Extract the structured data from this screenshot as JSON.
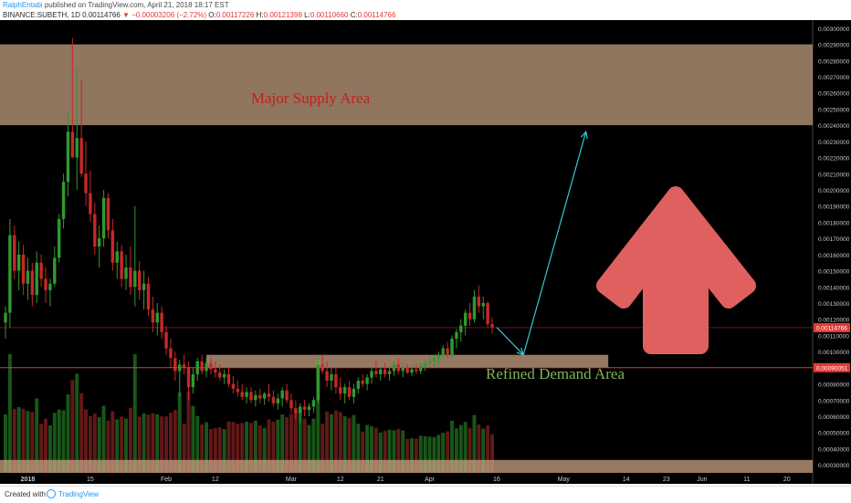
{
  "header": {
    "author": "RalphEntabi",
    "published_text": " published on TradingView.com, April 21, 2018 18:17 EST",
    "symbol": "BINANCE:SUBETH, 1D",
    "last": "0.00114766",
    "change": "−0.00003206 (−2.72%)",
    "open_label": "O:",
    "open": "0.00117226",
    "high_label": "H:",
    "high": "0.00121398",
    "low_label": "L:",
    "low": "0.00110660",
    "close_label": "C:",
    "close": "0.00114766"
  },
  "footer": {
    "created_with": "Created with",
    "brand": "TradingView"
  },
  "colors": {
    "background": "#000000",
    "bull": "#2e9a2e",
    "bear": "#c62828",
    "zone": "#c7a283",
    "price_line": "#e53935",
    "arrow_line": "#35c7d8",
    "big_arrow": "#e06060",
    "supply_text": "#c41e1e",
    "demand_text": "#7fb25c"
  },
  "chart_data": {
    "type": "candlestick",
    "y_axis": {
      "min": 0.00025,
      "max": 0.00305,
      "tick_labels": [
        "0.00300000",
        "0.00290000",
        "0.00280000",
        "0.00270000",
        "0.00260000",
        "0.00250000",
        "0.00240000",
        "0.00230000",
        "0.00220000",
        "0.00210000",
        "0.00200000",
        "0.00190000",
        "0.00180000",
        "0.00170000",
        "0.00160000",
        "0.00150000",
        "0.00140000",
        "0.00130000",
        "0.00120000",
        "0.00110000",
        "0.00100000",
        "0.00090000",
        "0.00080000",
        "0.00070000",
        "0.00060000",
        "0.00050000",
        "0.00040000",
        "0.00030000"
      ],
      "price_tag": {
        "label": "0.00114766",
        "value": 0.00114766
      },
      "level_tag": {
        "label": "0.00090051",
        "value": 0.00090051
      }
    },
    "x_axis": {
      "labels": [
        {
          "text": "2018",
          "index": 5,
          "bold": true
        },
        {
          "text": "15",
          "index": 19
        },
        {
          "text": "Feb",
          "index": 36
        },
        {
          "text": "12",
          "index": 47
        },
        {
          "text": "Mar",
          "index": 64
        },
        {
          "text": "12",
          "index": 75
        },
        {
          "text": "21",
          "index": 84
        },
        {
          "text": "Apr",
          "index": 95
        },
        {
          "text": "16",
          "index": 110
        },
        {
          "text": "May",
          "index": 125
        },
        {
          "text": "14",
          "index": 139
        },
        {
          "text": "23",
          "index": 148
        },
        {
          "text": "Jun",
          "index": 156
        },
        {
          "text": "11",
          "index": 166
        },
        {
          "text": "20",
          "index": 175
        }
      ],
      "bars_total": 182
    },
    "candles": [
      [
        0.00118,
        0.00128,
        0.00108,
        0.00124
      ],
      [
        0.00124,
        0.00182,
        0.00115,
        0.00172
      ],
      [
        0.00172,
        0.00178,
        0.00145,
        0.0015
      ],
      [
        0.0015,
        0.00168,
        0.00138,
        0.0016
      ],
      [
        0.0016,
        0.00166,
        0.00135,
        0.00142
      ],
      [
        0.00142,
        0.00158,
        0.00132,
        0.0015
      ],
      [
        0.0015,
        0.00155,
        0.00128,
        0.00135
      ],
      [
        0.00135,
        0.00162,
        0.0013,
        0.00155
      ],
      [
        0.00155,
        0.0016,
        0.0014,
        0.00145
      ],
      [
        0.00145,
        0.00152,
        0.0013,
        0.00138
      ],
      [
        0.00138,
        0.00145,
        0.00128,
        0.00142
      ],
      [
        0.00142,
        0.00165,
        0.0014,
        0.00158
      ],
      [
        0.00158,
        0.00185,
        0.00155,
        0.00182
      ],
      [
        0.00182,
        0.0021,
        0.00176,
        0.00205
      ],
      [
        0.00205,
        0.00248,
        0.00196,
        0.00236
      ],
      [
        0.00236,
        0.00294,
        0.0022,
        0.0022
      ],
      [
        0.0022,
        0.00275,
        0.002,
        0.00232
      ],
      [
        0.00232,
        0.00268,
        0.00208,
        0.0021
      ],
      [
        0.0021,
        0.0023,
        0.0019,
        0.00198
      ],
      [
        0.00198,
        0.00212,
        0.0018,
        0.00185
      ],
      [
        0.00185,
        0.00192,
        0.0016,
        0.00165
      ],
      [
        0.00165,
        0.00178,
        0.00152,
        0.0017
      ],
      [
        0.0017,
        0.002,
        0.00165,
        0.00195
      ],
      [
        0.00195,
        0.00198,
        0.0017,
        0.00175
      ],
      [
        0.00175,
        0.00182,
        0.0015,
        0.00155
      ],
      [
        0.00155,
        0.00168,
        0.00145,
        0.00162
      ],
      [
        0.00162,
        0.00166,
        0.0014,
        0.00145
      ],
      [
        0.00145,
        0.0016,
        0.00138,
        0.00152
      ],
      [
        0.00152,
        0.00165,
        0.00135,
        0.0014
      ],
      [
        0.0014,
        0.0019,
        0.00128,
        0.0015
      ],
      [
        0.0015,
        0.00156,
        0.00132,
        0.00138
      ],
      [
        0.00138,
        0.0015,
        0.00126,
        0.00142
      ],
      [
        0.00142,
        0.00146,
        0.00122,
        0.00126
      ],
      [
        0.00126,
        0.00134,
        0.00112,
        0.00118
      ],
      [
        0.00118,
        0.0013,
        0.0011,
        0.00124
      ],
      [
        0.00124,
        0.00128,
        0.00108,
        0.00112
      ],
      [
        0.00112,
        0.00116,
        0.00098,
        0.00102
      ],
      [
        0.00102,
        0.00108,
        0.0009,
        0.00096
      ],
      [
        0.00096,
        0.001,
        0.00082,
        0.00088
      ],
      [
        0.00088,
        0.00095,
        0.00072,
        0.00092
      ],
      [
        0.00092,
        0.00098,
        0.00086,
        0.0009
      ],
      [
        0.0009,
        0.00094,
        0.0007,
        0.00078
      ],
      [
        0.00078,
        0.0009,
        0.00074,
        0.00086
      ],
      [
        0.00086,
        0.00096,
        0.00082,
        0.00094
      ],
      [
        0.00094,
        0.00098,
        0.00086,
        0.00088
      ],
      [
        0.00088,
        0.00096,
        0.00084,
        0.00093
      ],
      [
        0.00093,
        0.00096,
        0.00086,
        0.00089
      ],
      [
        0.00089,
        0.00094,
        0.00084,
        0.00087
      ],
      [
        0.00087,
        0.00092,
        0.00082,
        0.00084
      ],
      [
        0.00084,
        0.00089,
        0.0008,
        0.00086
      ],
      [
        0.00086,
        0.0009,
        0.00078,
        0.0008
      ],
      [
        0.0008,
        0.00085,
        0.00074,
        0.00077
      ],
      [
        0.00077,
        0.00082,
        0.00072,
        0.00075
      ],
      [
        0.00075,
        0.0008,
        0.0007,
        0.00072
      ],
      [
        0.00072,
        0.00078,
        0.00068,
        0.00075
      ],
      [
        0.00075,
        0.00078,
        0.00068,
        0.0007
      ],
      [
        0.0007,
        0.00076,
        0.00066,
        0.00073
      ],
      [
        0.00073,
        0.00077,
        0.00068,
        0.00071
      ],
      [
        0.00071,
        0.00075,
        0.00067,
        0.00074
      ],
      [
        0.00074,
        0.0008,
        0.00069,
        0.00072
      ],
      [
        0.00072,
        0.00076,
        0.00066,
        0.00068
      ],
      [
        0.00068,
        0.00074,
        0.00064,
        0.00071
      ],
      [
        0.00071,
        0.00078,
        0.00066,
        0.00076
      ],
      [
        0.00076,
        0.0008,
        0.00068,
        0.0007
      ],
      [
        0.0007,
        0.00074,
        0.00062,
        0.00065
      ],
      [
        0.00065,
        0.0007,
        0.00058,
        0.00062
      ],
      [
        0.00062,
        0.00068,
        0.00056,
        0.00066
      ],
      [
        0.00066,
        0.0007,
        0.0006,
        0.00064
      ],
      [
        0.00064,
        0.00068,
        0.0006,
        0.00066
      ],
      [
        0.00066,
        0.00072,
        0.00062,
        0.0007
      ],
      [
        0.0007,
        0.00096,
        0.00068,
        0.00092
      ],
      [
        0.00092,
        0.00098,
        0.00086,
        0.00088
      ],
      [
        0.00088,
        0.00094,
        0.00078,
        0.00082
      ],
      [
        0.00082,
        0.0009,
        0.00076,
        0.00086
      ],
      [
        0.00086,
        0.0009,
        0.00074,
        0.00078
      ],
      [
        0.00078,
        0.00084,
        0.0007,
        0.00074
      ],
      [
        0.00074,
        0.0008,
        0.00068,
        0.00078
      ],
      [
        0.00078,
        0.00082,
        0.0007,
        0.00072
      ],
      [
        0.00072,
        0.0008,
        0.00068,
        0.00077
      ],
      [
        0.00077,
        0.00084,
        0.00074,
        0.00082
      ],
      [
        0.00082,
        0.00086,
        0.00078,
        0.0008
      ],
      [
        0.0008,
        0.00086,
        0.00076,
        0.00084
      ],
      [
        0.00084,
        0.0009,
        0.0008,
        0.00088
      ],
      [
        0.00088,
        0.00094,
        0.00084,
        0.00086
      ],
      [
        0.00086,
        0.0009,
        0.00082,
        0.00089
      ],
      [
        0.00089,
        0.00093,
        0.00084,
        0.00086
      ],
      [
        0.00086,
        0.00091,
        0.00082,
        0.00088
      ],
      [
        0.00088,
        0.00094,
        0.00085,
        0.00092
      ],
      [
        0.00092,
        0.00096,
        0.00086,
        0.00088
      ],
      [
        0.00088,
        0.00093,
        0.00084,
        0.0009
      ],
      [
        0.0009,
        0.00092,
        0.00086,
        0.00087
      ],
      [
        0.00087,
        0.00091,
        0.00085,
        0.00089
      ],
      [
        0.00089,
        0.00092,
        0.00086,
        0.00088
      ],
      [
        0.00088,
        0.00093,
        0.00086,
        0.00091
      ],
      [
        0.00091,
        0.00095,
        0.00088,
        0.00093
      ],
      [
        0.00093,
        0.00097,
        0.0009,
        0.00094
      ],
      [
        0.00094,
        0.00098,
        0.00091,
        0.00096
      ],
      [
        0.00096,
        0.001,
        0.00092,
        0.00098
      ],
      [
        0.00098,
        0.00104,
        0.00095,
        0.00102
      ],
      [
        0.00102,
        0.00106,
        0.00096,
        0.00098
      ],
      [
        0.00098,
        0.0011,
        0.00096,
        0.00108
      ],
      [
        0.00108,
        0.00114,
        0.00102,
        0.00112
      ],
      [
        0.00112,
        0.0012,
        0.00106,
        0.00116
      ],
      [
        0.00116,
        0.00126,
        0.0011,
        0.00124
      ],
      [
        0.00124,
        0.0013,
        0.00116,
        0.0012
      ],
      [
        0.0012,
        0.00138,
        0.00118,
        0.00134
      ],
      [
        0.00134,
        0.00141,
        0.00124,
        0.00128
      ],
      [
        0.00128,
        0.00134,
        0.0012,
        0.0013
      ],
      [
        0.0013,
        0.00131,
        0.00115,
        0.00117
      ],
      [
        0.00117,
        0.00121,
        0.00111,
        0.00115
      ]
    ],
    "zones": [
      {
        "label": "Major Supply Area",
        "from": 0.0024,
        "to": 0.0029
      },
      {
        "label": "Refined Demand Area",
        "from": 0.0009,
        "to": 0.00098
      },
      {
        "label": "",
        "from": 0.00025,
        "to": 0.00033
      }
    ],
    "projection": [
      [
        110,
        0.00115
      ],
      [
        116,
        0.00098
      ],
      [
        130,
        0.00236
      ]
    ]
  }
}
